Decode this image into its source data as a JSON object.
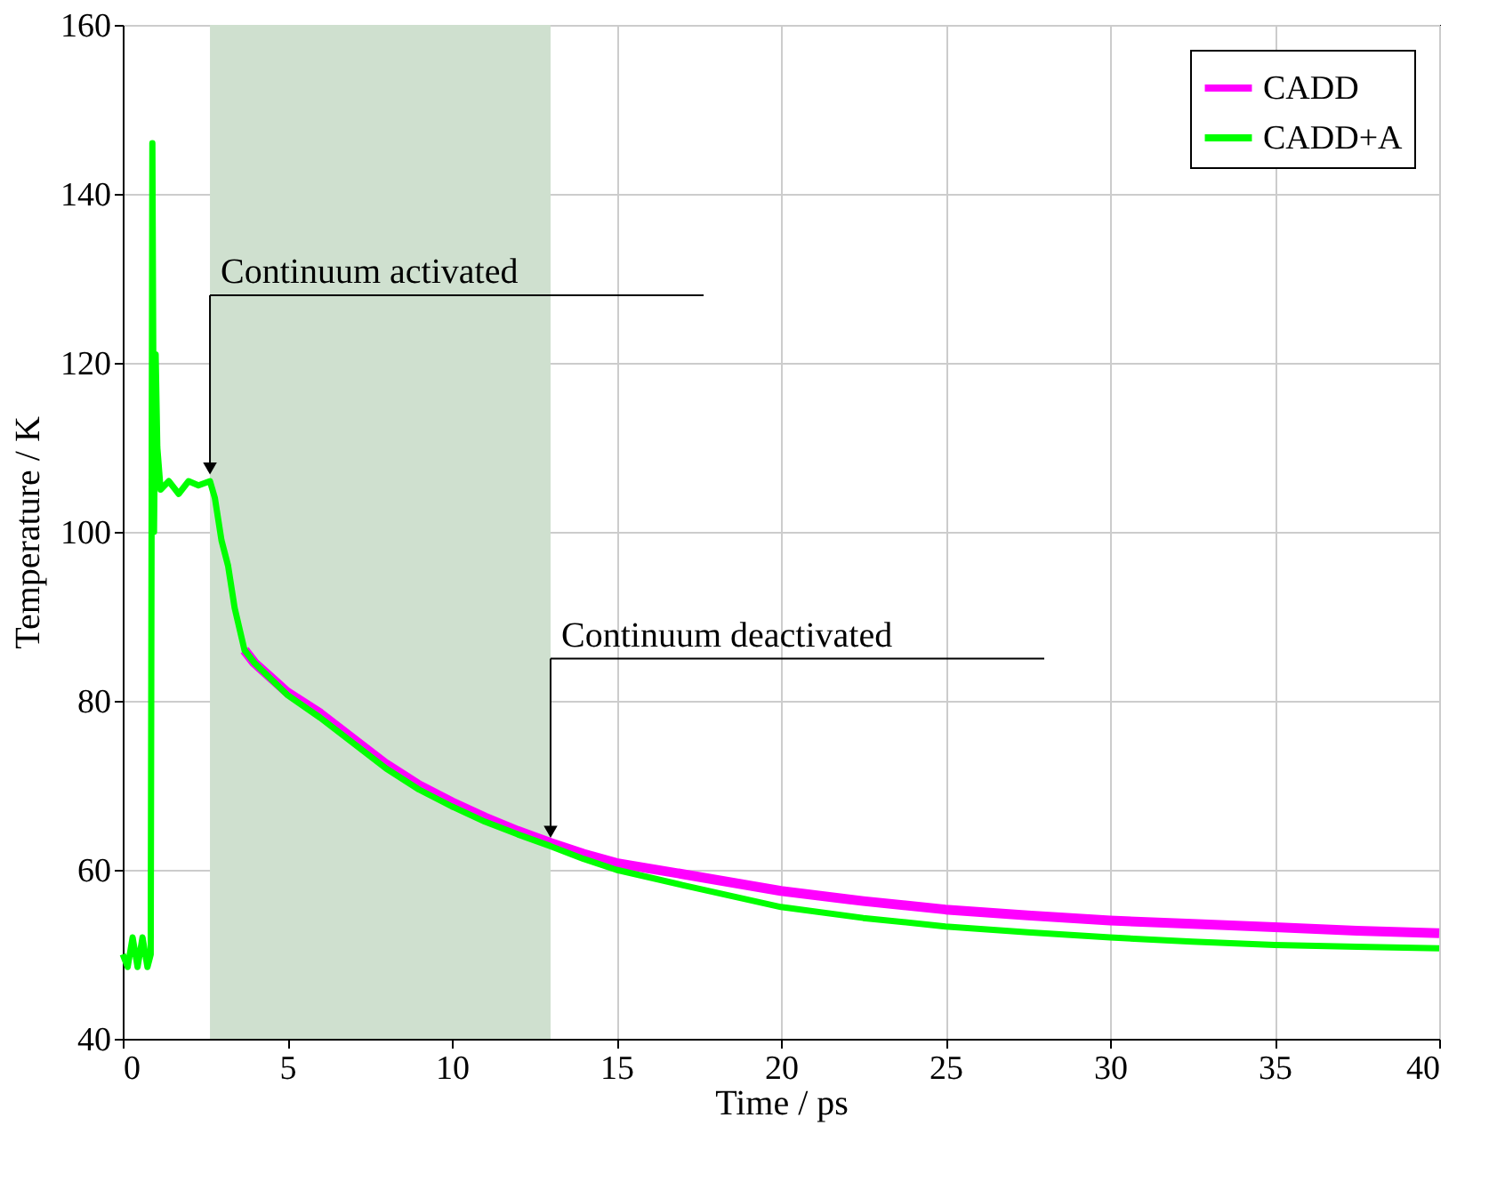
{
  "chart_data": {
    "type": "line",
    "xlabel": "Time / ps",
    "ylabel": "Temperature / K",
    "xlim": [
      0,
      40
    ],
    "xticks": [
      0,
      5,
      10,
      15,
      20,
      25,
      30,
      35,
      40
    ],
    "ylim": [
      40,
      160
    ],
    "yticks": [
      40,
      60,
      80,
      100,
      120,
      140,
      160
    ],
    "grid": true,
    "legend": "top right",
    "line_style": "solid",
    "bands": [
      {
        "axis": "x",
        "from": 2.65,
        "to": 13.0,
        "color": "#cfe0cf"
      }
    ],
    "annotations": [
      {
        "text": "Continuum activated",
        "x": 2.65,
        "y": 106
      },
      {
        "text": "Continuum deactivated",
        "x": 13.0,
        "y": 63
      }
    ],
    "series": [
      {
        "name": "CADD",
        "color": "#ff00ff",
        "x": [
          3.7,
          4.0,
          5,
          6,
          7,
          8,
          9,
          10,
          11,
          12,
          13,
          14,
          15,
          17,
          20,
          22.5,
          25,
          27.5,
          30,
          32.5,
          35,
          37.5,
          40
        ],
        "values": [
          86,
          84.5,
          81,
          78.5,
          75.5,
          72.5,
          70,
          68,
          66.2,
          64.6,
          63.2,
          61.9,
          60.8,
          59.5,
          57.5,
          56.3,
          55.3,
          54.6,
          54.0,
          53.6,
          53.2,
          52.8,
          52.5
        ]
      },
      {
        "name": "CADD+A",
        "color": "#00ff00",
        "x": [
          0,
          0.15,
          0.3,
          0.45,
          0.6,
          0.75,
          0.85,
          0.9,
          0.95,
          1.0,
          1.05,
          1.15,
          1.4,
          1.7,
          2.0,
          2.3,
          2.65,
          2.8,
          3.0,
          3.2,
          3.4,
          3.7,
          4.0,
          5,
          6,
          7,
          8,
          9,
          10,
          11,
          12,
          13,
          14,
          15,
          17,
          20,
          22.5,
          25,
          27.5,
          30,
          32.5,
          35,
          37.5,
          40
        ],
        "values": [
          50,
          48.5,
          52,
          48.5,
          52,
          48.5,
          50,
          146,
          100,
          121,
          110,
          105,
          106,
          104.5,
          106,
          105.5,
          106,
          104,
          99,
          96,
          91,
          86,
          84.5,
          80.7,
          78,
          75,
          72,
          69.5,
          67.5,
          65.7,
          64.2,
          62.8,
          61.3,
          60,
          58.2,
          55.6,
          54.3,
          53.3,
          52.6,
          52.0,
          51.5,
          51.1,
          50.9,
          50.7
        ]
      }
    ]
  }
}
